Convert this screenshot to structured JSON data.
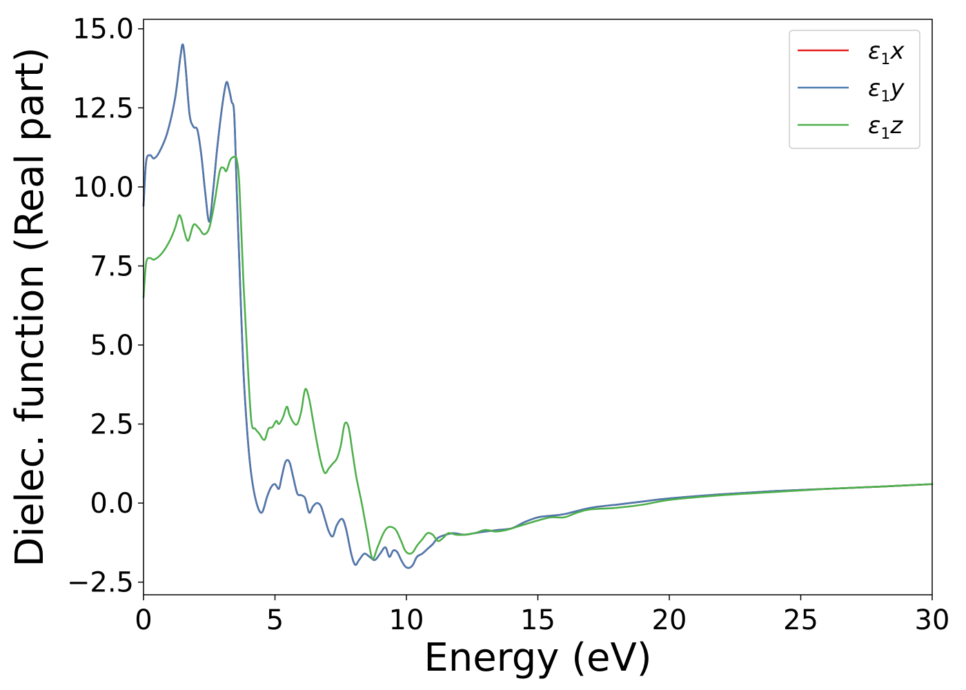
{
  "chart_data": {
    "type": "line",
    "title": "",
    "xlabel": "Energy (eV)",
    "ylabel": "Dielec. function (Real part)",
    "xlim": [
      0,
      30
    ],
    "ylim": [
      -2.9,
      15.3
    ],
    "xticks": [
      0,
      5,
      10,
      15,
      20,
      25,
      30
    ],
    "xtick_labels": [
      "0",
      "5",
      "10",
      "15",
      "20",
      "25",
      "30"
    ],
    "yticks": [
      -2.5,
      0.0,
      2.5,
      5.0,
      7.5,
      10.0,
      12.5,
      15.0
    ],
    "ytick_labels": [
      "−2.5",
      "0.0",
      "2.5",
      "5.0",
      "7.5",
      "10.0",
      "12.5",
      "15.0"
    ],
    "grid": false,
    "legend_position": "top-right",
    "series": [
      {
        "name": "ε₁x",
        "legend_base": "ε",
        "legend_sub": "1",
        "legend_var": "x",
        "color": "#e41a1c",
        "x": [
          0,
          0.1,
          0.25,
          0.4,
          0.6,
          0.9,
          1.2,
          1.4,
          1.5,
          1.6,
          1.75,
          1.9,
          2.05,
          2.2,
          2.35,
          2.5,
          2.65,
          2.8,
          3.0,
          3.15,
          3.25,
          3.35,
          3.45,
          3.55,
          3.65,
          3.8,
          3.95,
          4.1,
          4.3,
          4.5,
          4.7,
          4.85,
          5.0,
          5.15,
          5.25,
          5.4,
          5.55,
          5.7,
          5.85,
          6.0,
          6.15,
          6.3,
          6.45,
          6.6,
          6.75,
          6.9,
          7.05,
          7.2,
          7.35,
          7.55,
          7.7,
          7.9,
          8.05,
          8.2,
          8.4,
          8.6,
          8.8,
          9.0,
          9.2,
          9.35,
          9.5,
          9.65,
          9.8,
          9.95,
          10.1,
          10.25,
          10.4,
          10.6,
          10.8,
          11.0,
          11.2,
          11.5,
          11.8,
          12.2,
          12.6,
          13.0,
          13.5,
          14.0,
          14.5,
          15.0,
          15.5,
          16.0,
          17.0,
          18.0,
          19.0,
          20.0,
          22.0,
          24.0,
          26.0,
          28.0,
          30.0
        ],
        "y": [
          9.4,
          10.8,
          11.0,
          10.9,
          11.1,
          11.7,
          12.8,
          14.1,
          14.5,
          13.8,
          12.3,
          11.9,
          11.8,
          11.0,
          9.8,
          8.9,
          9.9,
          11.2,
          12.6,
          13.3,
          13.1,
          12.7,
          12.3,
          9.8,
          7.5,
          4.2,
          2.2,
          0.9,
          0.0,
          -0.3,
          0.2,
          0.5,
          0.6,
          0.45,
          0.8,
          1.3,
          1.3,
          0.8,
          0.3,
          0.25,
          0.15,
          -0.3,
          -0.1,
          0.0,
          -0.1,
          -0.5,
          -0.9,
          -1.05,
          -0.7,
          -0.5,
          -0.8,
          -1.6,
          -1.95,
          -1.8,
          -1.6,
          -1.7,
          -1.8,
          -1.6,
          -1.4,
          -1.7,
          -1.5,
          -1.55,
          -1.8,
          -2.0,
          -2.05,
          -1.95,
          -1.7,
          -1.6,
          -1.45,
          -1.3,
          -1.1,
          -1.0,
          -0.95,
          -1.0,
          -0.95,
          -0.9,
          -0.85,
          -0.8,
          -0.6,
          -0.45,
          -0.4,
          -0.35,
          -0.15,
          -0.05,
          0.05,
          0.15,
          0.28,
          0.38,
          0.45,
          0.52,
          0.6
        ]
      },
      {
        "name": "ε₁y",
        "legend_base": "ε",
        "legend_sub": "1",
        "legend_var": "y",
        "color": "#4a7ab0",
        "x": [
          0,
          0.1,
          0.25,
          0.4,
          0.6,
          0.9,
          1.2,
          1.4,
          1.5,
          1.6,
          1.75,
          1.9,
          2.05,
          2.2,
          2.35,
          2.5,
          2.65,
          2.8,
          3.0,
          3.15,
          3.25,
          3.35,
          3.45,
          3.55,
          3.65,
          3.8,
          3.95,
          4.1,
          4.3,
          4.5,
          4.7,
          4.85,
          5.0,
          5.15,
          5.25,
          5.4,
          5.55,
          5.7,
          5.85,
          6.0,
          6.15,
          6.3,
          6.45,
          6.6,
          6.75,
          6.9,
          7.05,
          7.2,
          7.35,
          7.55,
          7.7,
          7.9,
          8.05,
          8.2,
          8.4,
          8.6,
          8.8,
          9.0,
          9.2,
          9.35,
          9.5,
          9.65,
          9.8,
          9.95,
          10.1,
          10.25,
          10.4,
          10.6,
          10.8,
          11.0,
          11.2,
          11.5,
          11.8,
          12.2,
          12.6,
          13.0,
          13.5,
          14.0,
          14.5,
          15.0,
          15.5,
          16.0,
          17.0,
          18.0,
          19.0,
          20.0,
          22.0,
          24.0,
          26.0,
          28.0,
          30.0
        ],
        "y": [
          9.4,
          10.8,
          11.0,
          10.9,
          11.1,
          11.7,
          12.8,
          14.1,
          14.5,
          13.8,
          12.3,
          11.9,
          11.8,
          11.0,
          9.8,
          8.9,
          9.9,
          11.2,
          12.6,
          13.3,
          13.1,
          12.7,
          12.3,
          9.8,
          7.5,
          4.2,
          2.2,
          0.9,
          0.0,
          -0.3,
          0.2,
          0.5,
          0.6,
          0.45,
          0.8,
          1.3,
          1.3,
          0.8,
          0.3,
          0.25,
          0.15,
          -0.3,
          -0.1,
          0.0,
          -0.1,
          -0.5,
          -0.9,
          -1.05,
          -0.7,
          -0.5,
          -0.8,
          -1.6,
          -1.95,
          -1.8,
          -1.6,
          -1.7,
          -1.8,
          -1.6,
          -1.4,
          -1.7,
          -1.5,
          -1.55,
          -1.8,
          -2.0,
          -2.05,
          -1.95,
          -1.7,
          -1.6,
          -1.45,
          -1.3,
          -1.1,
          -1.0,
          -0.95,
          -1.0,
          -0.95,
          -0.9,
          -0.85,
          -0.8,
          -0.6,
          -0.45,
          -0.4,
          -0.35,
          -0.15,
          -0.05,
          0.05,
          0.15,
          0.28,
          0.38,
          0.45,
          0.52,
          0.6
        ]
      },
      {
        "name": "ε₁z",
        "legend_base": "ε",
        "legend_sub": "1",
        "legend_var": "z",
        "color": "#4daf4a",
        "x": [
          0,
          0.1,
          0.25,
          0.4,
          0.7,
          1.0,
          1.2,
          1.35,
          1.45,
          1.55,
          1.7,
          1.9,
          2.1,
          2.3,
          2.5,
          2.7,
          2.9,
          3.05,
          3.15,
          3.3,
          3.45,
          3.55,
          3.65,
          3.8,
          3.95,
          4.1,
          4.25,
          4.4,
          4.6,
          4.75,
          4.9,
          5.05,
          5.15,
          5.3,
          5.45,
          5.55,
          5.7,
          5.85,
          6.0,
          6.15,
          6.3,
          6.45,
          6.6,
          6.75,
          6.9,
          7.05,
          7.2,
          7.35,
          7.5,
          7.65,
          7.8,
          7.95,
          8.1,
          8.3,
          8.5,
          8.7,
          8.9,
          9.1,
          9.25,
          9.4,
          9.6,
          9.8,
          9.95,
          10.1,
          10.25,
          10.4,
          10.6,
          10.8,
          11.0,
          11.2,
          11.4,
          11.6,
          11.9,
          12.2,
          12.6,
          13.0,
          13.4,
          13.8,
          14.2,
          14.6,
          15.0,
          15.5,
          16.0,
          16.5,
          17.0,
          18.0,
          19.0,
          20.0,
          22.0,
          24.0,
          26.0,
          28.0,
          30.0
        ],
        "y": [
          6.5,
          7.6,
          7.75,
          7.7,
          7.9,
          8.3,
          8.7,
          9.1,
          8.95,
          8.6,
          8.3,
          8.8,
          8.7,
          8.5,
          8.7,
          9.5,
          10.5,
          10.6,
          10.5,
          10.85,
          10.95,
          10.85,
          10.0,
          7.0,
          4.6,
          2.6,
          2.35,
          2.2,
          2.0,
          2.35,
          2.4,
          2.6,
          2.5,
          2.7,
          3.05,
          2.8,
          2.55,
          2.5,
          2.9,
          3.6,
          3.3,
          2.6,
          1.9,
          1.3,
          0.95,
          1.1,
          1.25,
          1.4,
          1.8,
          2.5,
          2.4,
          1.6,
          0.8,
          0.0,
          -0.9,
          -1.75,
          -1.4,
          -1.0,
          -0.8,
          -0.75,
          -0.85,
          -1.2,
          -1.5,
          -1.6,
          -1.55,
          -1.35,
          -1.15,
          -0.95,
          -1.0,
          -1.2,
          -1.1,
          -0.95,
          -1.0,
          -1.0,
          -0.95,
          -0.85,
          -0.9,
          -0.85,
          -0.75,
          -0.65,
          -0.55,
          -0.45,
          -0.45,
          -0.3,
          -0.2,
          -0.15,
          -0.05,
          0.1,
          0.25,
          0.35,
          0.45,
          0.52,
          0.6
        ]
      }
    ]
  }
}
